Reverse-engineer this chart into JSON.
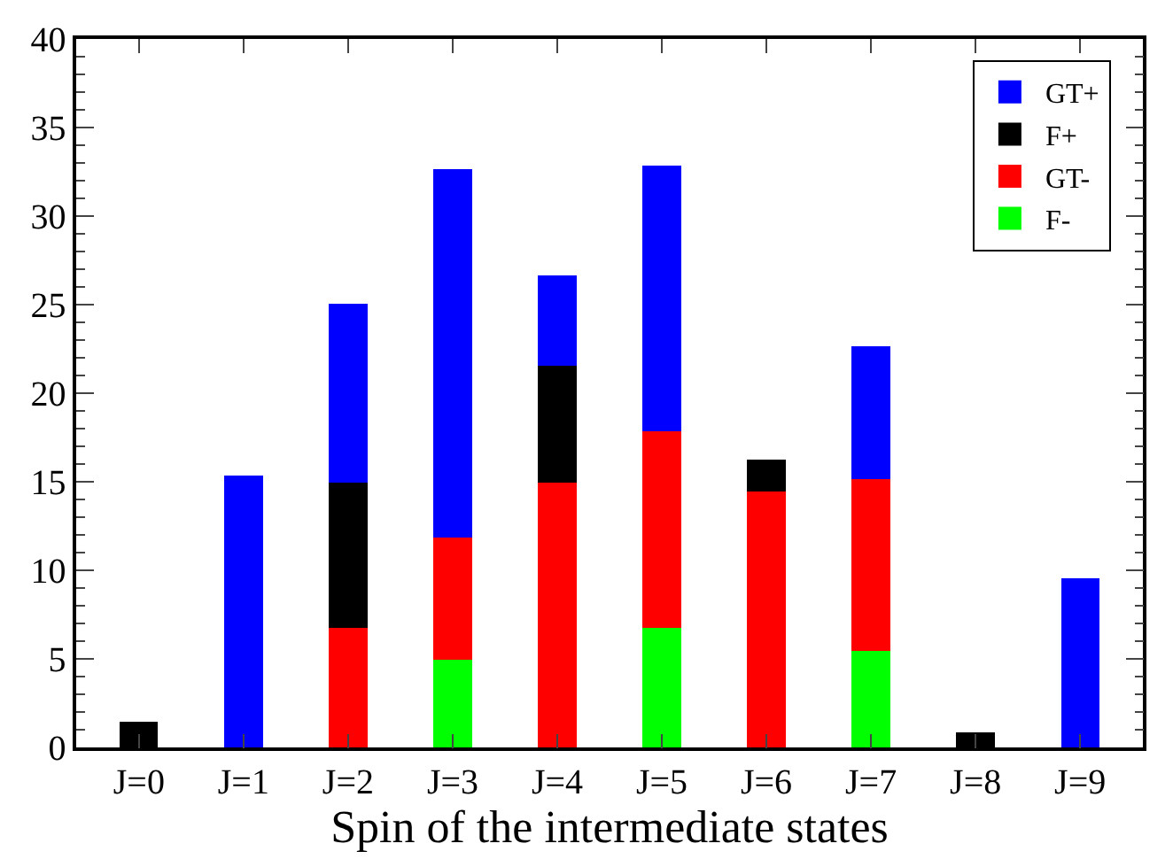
{
  "chart_data": {
    "type": "bar",
    "stacked": true,
    "xlabel": "Spin of the intermediate states",
    "categories": [
      "J=0",
      "J=1",
      "J=2",
      "J=3",
      "J=4",
      "J=5",
      "J=6",
      "J=7",
      "J=8",
      "J=9"
    ],
    "series": [
      {
        "name": "F-",
        "color": "#00ff00",
        "values": [
          null,
          null,
          null,
          5.0,
          null,
          6.8,
          null,
          5.5,
          null,
          null
        ]
      },
      {
        "name": "GT-",
        "color": "#ff0000",
        "values": [
          null,
          null,
          6.8,
          6.9,
          15.0,
          11.1,
          14.5,
          9.7,
          null,
          null
        ]
      },
      {
        "name": "F+",
        "color": "#000000",
        "values": [
          1.4,
          null,
          8.2,
          null,
          6.6,
          null,
          1.7,
          null,
          0.8,
          null
        ]
      },
      {
        "name": "GT+",
        "color": "#0000ff",
        "values": [
          null,
          15.3,
          10.0,
          20.7,
          5.0,
          14.9,
          null,
          7.4,
          null,
          9.5
        ]
      }
    ],
    "ylim": [
      0,
      40
    ],
    "yticks": [
      0,
      5,
      10,
      15,
      20,
      25,
      30,
      35,
      40
    ],
    "legend": "top right"
  }
}
